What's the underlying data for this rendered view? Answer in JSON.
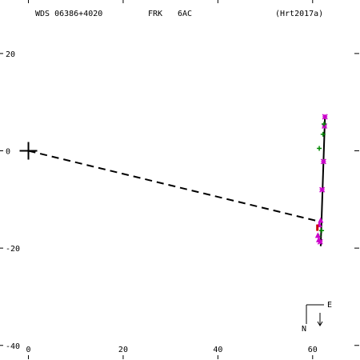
{
  "header": {
    "wds": "WDS 06386+4020",
    "discoverer": "FRK",
    "components": "6AC",
    "reference": "(Hrt2017a)"
  },
  "compass": {
    "north": "N",
    "east": "E"
  },
  "chart_data": {
    "type": "scatter",
    "title": "",
    "xlabel": "",
    "ylabel": "",
    "xlim": [
      -6,
      70
    ],
    "ylim": [
      -43,
      31
    ],
    "x_ticks": [
      0,
      20,
      40,
      60
    ],
    "y_ticks": [
      20,
      0,
      -20,
      -40
    ],
    "y_tick_labels": [
      "20",
      "0",
      "-20",
      "-40"
    ],
    "primary": {
      "x": 0,
      "y": 0
    },
    "colors": {
      "asterisk": "#cc00cc",
      "plus": "#008800",
      "triangle": "#cc00cc",
      "bar": "#cc0000",
      "line": "#000000"
    },
    "orbit_segment": {
      "x1": 61.7,
      "y1": -19.6,
      "x2": 62.6,
      "y2": 6.9
    },
    "connector": {
      "x1": 0,
      "y1": 0,
      "x2": 61.7,
      "y2": -14.6
    },
    "series": [
      {
        "marker": "asterisk",
        "points": [
          [
            62.6,
            7.0
          ],
          [
            62.5,
            5.1
          ],
          [
            62.3,
            -2.2
          ],
          [
            62.0,
            -8.0
          ],
          [
            61.6,
            -18.7
          ]
        ]
      },
      {
        "marker": "plus",
        "points": [
          [
            62.4,
            5.5
          ],
          [
            62.2,
            3.4
          ],
          [
            61.4,
            0.5
          ],
          [
            61.9,
            -16.4
          ],
          [
            61.3,
            -17.6
          ]
        ]
      },
      {
        "marker": "triangle",
        "points": [
          [
            61.7,
            -14.3
          ],
          [
            61.4,
            -15.2
          ],
          [
            61.1,
            -17.4
          ],
          [
            61.3,
            -18.3
          ]
        ]
      },
      {
        "marker": "bar",
        "points": [
          [
            61.0,
            -15.8
          ]
        ]
      }
    ]
  }
}
